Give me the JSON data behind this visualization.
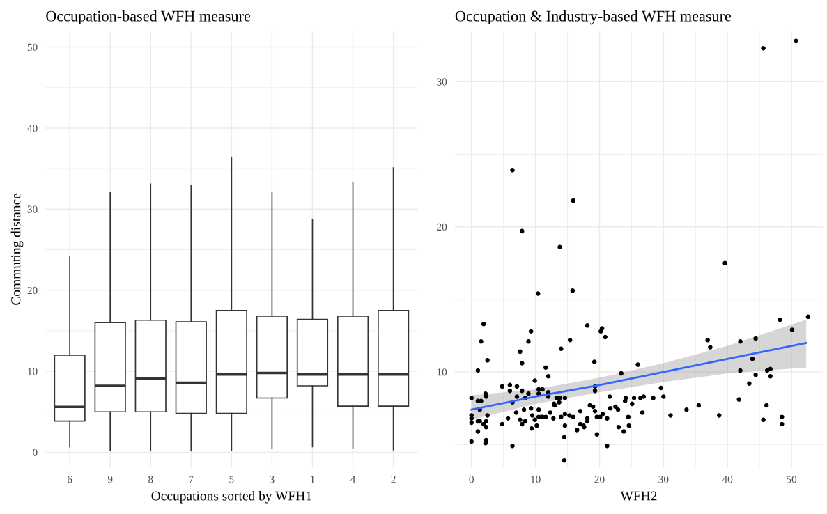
{
  "chart_data": [
    {
      "type": "box",
      "title": "Occupation-based WFH measure",
      "xlabel": "Occupations sorted by WFH1",
      "ylabel": "Commuting distance",
      "categories": [
        "6",
        "9",
        "8",
        "7",
        "5",
        "3",
        "1",
        "4",
        "2"
      ],
      "ylim": [
        -1.9,
        52
      ],
      "yticks": [
        0,
        10,
        20,
        30,
        40,
        50
      ],
      "grid": true,
      "color": "#333333",
      "boxes": [
        {
          "low": 0.7,
          "q1": 3.85,
          "median": 5.6,
          "q3": 12.0,
          "high": 24.1
        },
        {
          "low": 0.2,
          "q1": 5.0,
          "median": 8.2,
          "q3": 16.0,
          "high": 32.1
        },
        {
          "low": 0.2,
          "q1": 5.0,
          "median": 9.1,
          "q3": 16.3,
          "high": 33.1
        },
        {
          "low": 0.2,
          "q1": 4.8,
          "median": 8.6,
          "q3": 16.1,
          "high": 32.9
        },
        {
          "low": 0.2,
          "q1": 4.8,
          "median": 9.6,
          "q3": 17.5,
          "high": 36.4
        },
        {
          "low": 0.5,
          "q1": 6.7,
          "median": 9.8,
          "q3": 16.8,
          "high": 32.0
        },
        {
          "low": 0.7,
          "q1": 8.2,
          "median": 9.6,
          "q3": 16.4,
          "high": 28.7
        },
        {
          "low": 0.5,
          "q1": 5.7,
          "median": 9.6,
          "q3": 16.8,
          "high": 33.3
        },
        {
          "low": 0.3,
          "q1": 5.7,
          "median": 9.6,
          "q3": 17.5,
          "high": 35.1
        }
      ]
    },
    {
      "type": "scatter",
      "title": "Occupation & Industry-based WFH measure",
      "xlabel": "WFH2",
      "xlim": [
        -2.6,
        54.9
      ],
      "xticks": [
        0,
        10,
        20,
        30,
        40,
        50
      ],
      "ylim": [
        3.4,
        33.5
      ],
      "yticks": [
        10,
        20,
        30
      ],
      "grid": true,
      "series": [
        {
          "type": "scatter",
          "color": "#000000",
          "marker": "circle",
          "x": [
            1.9,
            1.5,
            1.0,
            2.5,
            0,
            2.2,
            2.3,
            1.0,
            1.5,
            1.3,
            0,
            0,
            0,
            1.0,
            1.3,
            1.9,
            2.3,
            2.3,
            2.5,
            1.0,
            0,
            2.3,
            2.2,
            4.8,
            6.0,
            6.0,
            7.1,
            6.4,
            7.0,
            4.8,
            5.7,
            6.4,
            7.9,
            7.1,
            7.6,
            7.9,
            8.2,
            8.4,
            8.9,
            8.4,
            7.6,
            7.9,
            8.9,
            9.3,
            9.3,
            9.5,
            9.9,
            9.4,
            9.9,
            10.2,
            10.5,
            10.5,
            10.5,
            11.1,
            11.1,
            10.5,
            10.9,
            11.6,
            12.0,
            12.0,
            11.6,
            12.0,
            12.3,
            12.8,
            13.0,
            12.9,
            13.3,
            13.8,
            13.7,
            14.6,
            14.0,
            14.6,
            14.6,
            14.5,
            14.5,
            15.3,
            15.9,
            15.4,
            14.0,
            16.5,
            17.0,
            17.0,
            17.5,
            17.6,
            18.1,
            18.1,
            18.1,
            18.5,
            19.0,
            19.3,
            19.2,
            19.3,
            19.3,
            19.6,
            19.6,
            20.1,
            20.5,
            20.2,
            20.4,
            20.9,
            21.2,
            21.2,
            21.6,
            21.7,
            22.5,
            22.9,
            23.0,
            23.4,
            23.8,
            6.4,
            15.9,
            7.9,
            13.8,
            10.4,
            15.8,
            45.6,
            50.7,
            39.6,
            52.6,
            48.2,
            50.1,
            36.9,
            37.3,
            42.0,
            44.4,
            43.9,
            26.0,
            42.0,
            46.2,
            46.7,
            44.4,
            46.7,
            43.4,
            29.6,
            30.0,
            24.1,
            24.0,
            25.4,
            26.4,
            26.9,
            28.4,
            25.1,
            26.7,
            24.5,
            31.1,
            33.6,
            35.5,
            38.7,
            41.8,
            46.1,
            45.6,
            48.5,
            48.5,
            24.6
          ],
          "values": [
            13.3,
            12.1,
            10.1,
            10.8,
            8.2,
            8.5,
            8.3,
            8.0,
            8.0,
            7.4,
            7.0,
            6.8,
            6.5,
            6.6,
            6.6,
            6.4,
            6.2,
            6.6,
            7.0,
            5.9,
            5.2,
            5.3,
            5.1,
            9.0,
            9.1,
            8.7,
            9.0,
            7.9,
            7.2,
            6.4,
            6.8,
            4.9,
            8.7,
            8.3,
            6.7,
            6.4,
            7.4,
            8.2,
            8.5,
            6.6,
            11.4,
            10.6,
            12.1,
            12.8,
            7.5,
            7.0,
            6.7,
            6.1,
            9.4,
            6.3,
            7.4,
            8.8,
            8.5,
            8.8,
            6.9,
            6.9,
            6.9,
            6.9,
            8.3,
            8.6,
            10.3,
            9.7,
            7.2,
            6.8,
            7.7,
            7.8,
            8.2,
            8.2,
            7.9,
            8.2,
            6.9,
            6.3,
            7.1,
            5.5,
            3.9,
            7.0,
            6.9,
            12.2,
            11.6,
            6.0,
            7.3,
            6.4,
            6.3,
            6.2,
            6.8,
            6.6,
            13.2,
            7.7,
            7.6,
            7.3,
            10.7,
            9.0,
            8.7,
            5.7,
            6.9,
            6.9,
            7.1,
            12.8,
            13.0,
            12.4,
            6.8,
            4.9,
            8.3,
            7.5,
            7.6,
            7.4,
            6.2,
            9.9,
            5.9,
            23.9,
            21.8,
            19.7,
            18.6,
            15.4,
            15.6,
            32.3,
            32.8,
            17.5,
            13.8,
            13.6,
            12.9,
            12.2,
            11.7,
            12.1,
            12.3,
            10.9,
            10.5,
            10.1,
            10.1,
            10.2,
            9.8,
            9.7,
            9.2,
            8.9,
            8.3,
            8.2,
            8.0,
            8.2,
            8.2,
            8.3,
            8.2,
            7.8,
            7.2,
            6.9,
            7.0,
            7.4,
            7.7,
            7.0,
            8.1,
            7.7,
            6.7,
            6.9,
            6.4,
            6.3
          ]
        },
        {
          "type": "line",
          "color": "#3366ff",
          "marker": "none",
          "x": [
            0,
            10,
            20,
            30,
            40,
            52.3
          ],
          "values": [
            7.4,
            8.3,
            9.1,
            10.0,
            10.9,
            12.0
          ],
          "lower": [
            6.7,
            7.8,
            8.6,
            9.3,
            9.9,
            10.3
          ],
          "upper": [
            8.4,
            8.8,
            9.6,
            10.6,
            11.8,
            13.6
          ]
        }
      ]
    }
  ]
}
